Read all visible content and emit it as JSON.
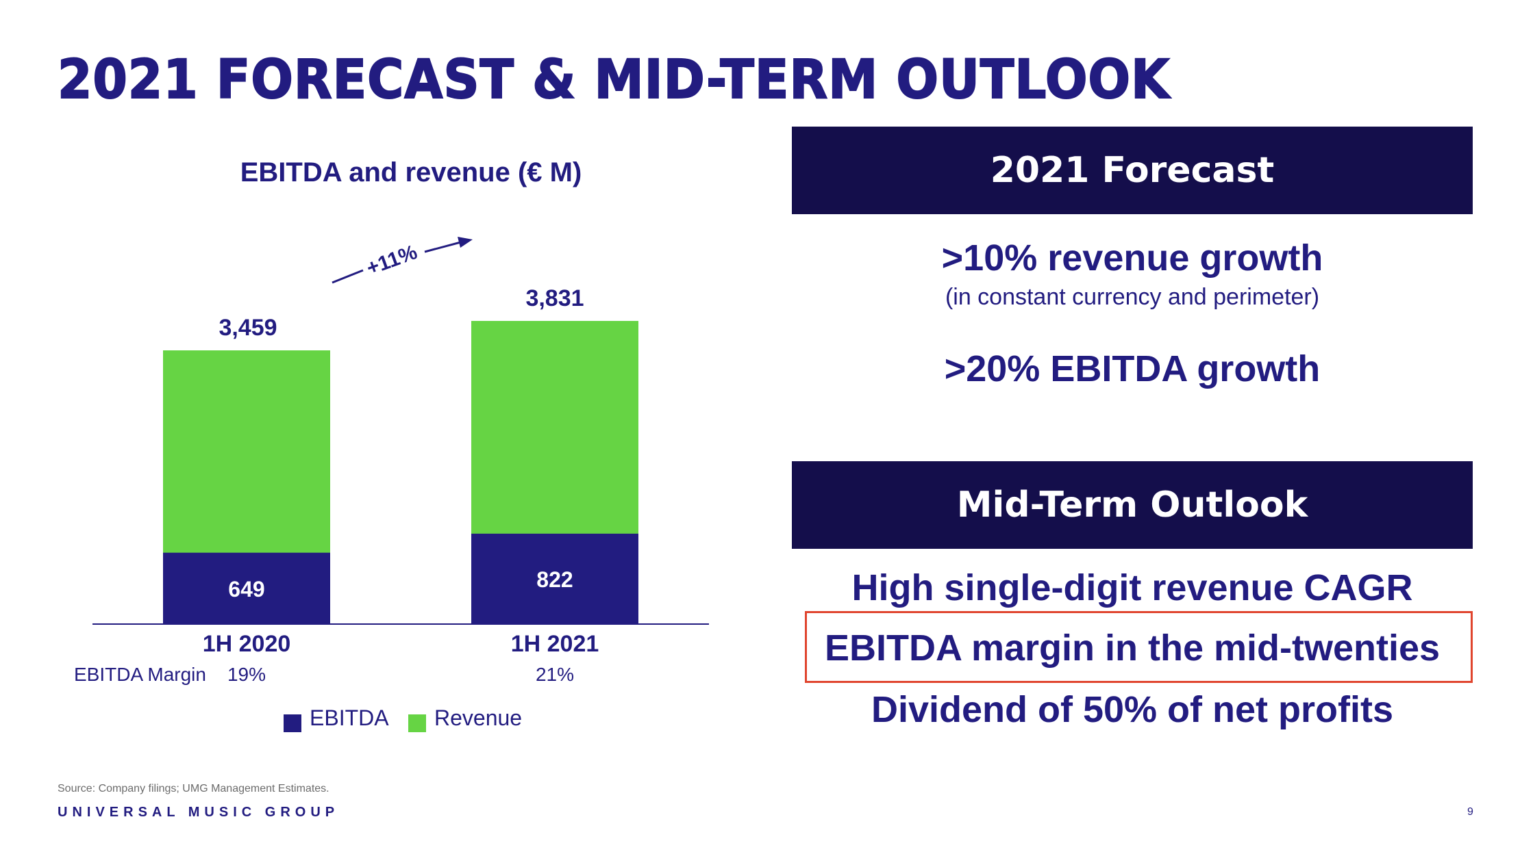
{
  "slide": {
    "title": "2021 FORECAST & MID-TERM OUTLOOK",
    "page_number": "9",
    "source": "Source: Company filings; UMG Management Estimates.",
    "brand": "UNIVERSAL MUSIC GROUP"
  },
  "forecast": {
    "header": "2021 Forecast",
    "items": [
      ">10% revenue growth",
      "(in constant currency and perimeter)",
      ">20% EBITDA growth"
    ]
  },
  "outlook": {
    "header": "Mid-Term Outlook",
    "items": [
      "High single-digit revenue CAGR",
      "EBITDA margin in the mid-twenties",
      "Dividend of 50% of net profits"
    ]
  },
  "colors": {
    "ebitda": "#221C80",
    "revenue": "#66D444",
    "header_bg": "#140E4B",
    "highlight": "#E0452E"
  },
  "chart_data": {
    "type": "bar",
    "stacked": "overlay",
    "title": "EBITDA and revenue (€ M)",
    "categories": [
      "1H 2020",
      "1H 2021"
    ],
    "series": [
      {
        "name": "EBITDA",
        "values": [
          649,
          822
        ]
      },
      {
        "name": "Revenue",
        "values": [
          3459,
          3831
        ]
      }
    ],
    "data_labels": {
      "EBITDA": [
        "649",
        "822"
      ],
      "Revenue": [
        "3,459",
        "3,831"
      ]
    },
    "growth_annotation": "+11%",
    "margin_label": "EBITDA Margin",
    "margins": [
      "19%",
      "21%"
    ],
    "legend": [
      "EBITDA",
      "Revenue"
    ],
    "legend_position": "bottom",
    "xlabel": "",
    "ylabel": "",
    "ylim": [
      0,
      4000
    ],
    "grid": false
  }
}
